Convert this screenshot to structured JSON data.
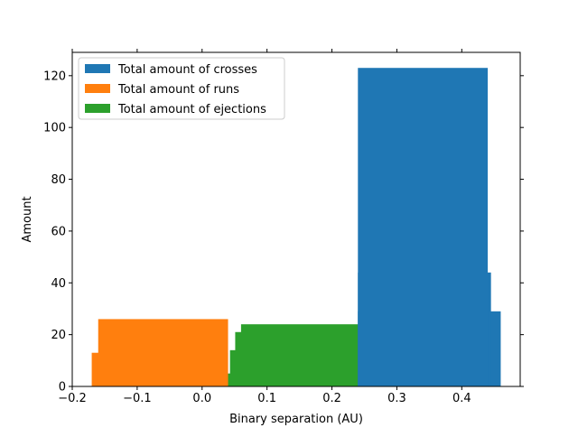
{
  "chart_data": {
    "type": "bar",
    "title": "",
    "xlabel": "Binary separation (AU)",
    "ylabel": "Amount",
    "xlim": [
      -0.2,
      0.49
    ],
    "ylim": [
      0,
      129
    ],
    "xticks": [
      -0.2,
      -0.1,
      0.0,
      0.1,
      0.2,
      0.3,
      0.4
    ],
    "xtick_labels": [
      "−0.2",
      "−0.1",
      "0.0",
      "0.1",
      "0.2",
      "0.3",
      "0.4"
    ],
    "yticks": [
      0,
      20,
      40,
      60,
      80,
      100,
      120
    ],
    "ytick_labels": [
      "0",
      "20",
      "40",
      "60",
      "80",
      "100",
      "120"
    ],
    "grid": false,
    "legend_position": "top-left",
    "series": [
      {
        "name": "Total amount of ejections",
        "color": "#2ca02c",
        "bars": [
          {
            "x0": 0.033,
            "x1": 0.26,
            "value": 5
          },
          {
            "x0": 0.043,
            "x1": 0.26,
            "value": 14
          },
          {
            "x0": 0.051,
            "x1": 0.26,
            "value": 21
          },
          {
            "x0": 0.06,
            "x1": 0.26,
            "value": 24
          }
        ]
      },
      {
        "name": "Total amount of runs",
        "color": "#ff7f0e",
        "bars": [
          {
            "x0": -0.17,
            "x1": 0.04,
            "value": 13
          },
          {
            "x0": -0.16,
            "x1": 0.04,
            "value": 26
          }
        ]
      },
      {
        "name": "Total amount of crosses",
        "color": "#1f77b4",
        "bars": [
          {
            "x0": 0.24,
            "x1": 0.46,
            "value": 29
          },
          {
            "x0": 0.24,
            "x1": 0.445,
            "value": 44
          },
          {
            "x0": 0.24,
            "x1": 0.44,
            "value": 123
          }
        ]
      }
    ],
    "legend_order": [
      "Total amount of crosses",
      "Total amount of runs",
      "Total amount of ejections"
    ]
  }
}
